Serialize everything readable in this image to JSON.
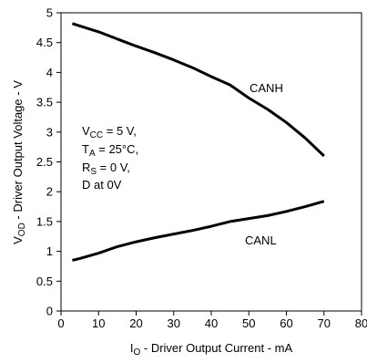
{
  "chart_data": {
    "type": "line",
    "xlabel": {
      "main": "I",
      "sub": "O",
      "rest": " - Driver Output Current - mA"
    },
    "ylabel": {
      "main": "V",
      "sub": "OD",
      "rest": " - Driver Output Voltage - V"
    },
    "xlim": [
      0,
      80
    ],
    "ylim": [
      0,
      5
    ],
    "xticks": [
      0,
      10,
      20,
      30,
      40,
      50,
      60,
      70,
      80
    ],
    "yticks": [
      0,
      0.5,
      1,
      1.5,
      2,
      2.5,
      3,
      3.5,
      4,
      4.5,
      5
    ],
    "xtick_labels": [
      "0",
      "10",
      "20",
      "30",
      "40",
      "50",
      "60",
      "70",
      "80"
    ],
    "ytick_labels": [
      "0",
      "0.5",
      "1",
      "1.5",
      "2",
      "2.5",
      "3",
      "3.5",
      "4",
      "4.5",
      "5"
    ],
    "grid": false,
    "series": [
      {
        "name": "CANH",
        "x": [
          3,
          5,
          10,
          15,
          20,
          25,
          30,
          35,
          40,
          45,
          50,
          55,
          60,
          65,
          70
        ],
        "y": [
          4.82,
          4.78,
          4.68,
          4.56,
          4.44,
          4.33,
          4.21,
          4.08,
          3.93,
          3.79,
          3.57,
          3.38,
          3.16,
          2.9,
          2.6
        ]
      },
      {
        "name": "CANL",
        "x": [
          3,
          5,
          10,
          15,
          20,
          25,
          30,
          35,
          40,
          45,
          50,
          55,
          60,
          65,
          70
        ],
        "y": [
          0.85,
          0.88,
          0.97,
          1.08,
          1.16,
          1.23,
          1.29,
          1.35,
          1.42,
          1.5,
          1.55,
          1.6,
          1.67,
          1.75,
          1.84
        ]
      }
    ],
    "annotations": {
      "conditions": [
        {
          "main": "V",
          "sub": "CC",
          "rest": " = 5 V,"
        },
        {
          "main": "T",
          "sub": "A",
          "rest": " = 25°C,"
        },
        {
          "main": "R",
          "sub": "S",
          "rest": " = 0 V,"
        },
        {
          "main": "D at 0V",
          "sub": "",
          "rest": ""
        }
      ],
      "canh_label": "CANH",
      "canl_label": "CANL"
    }
  }
}
